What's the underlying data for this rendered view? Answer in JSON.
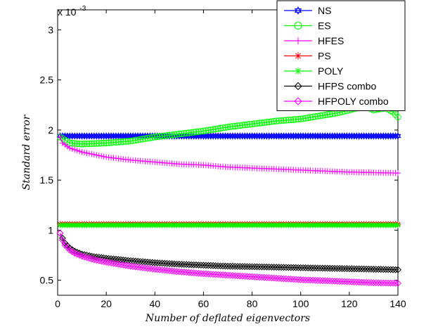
{
  "chart_data": {
    "type": "line",
    "title": "",
    "xlabel": "Number of deflated eigenvectors",
    "ylabel": "Standard error",
    "y_scale_label_base": "x 10",
    "y_scale_label_exp": "-3",
    "xlim": [
      0,
      140
    ],
    "ylim": [
      0.35,
      3.2
    ],
    "xticks": [
      0,
      20,
      40,
      60,
      80,
      100,
      120,
      140
    ],
    "xtick_labels": [
      "0",
      "20",
      "40",
      "60",
      "80",
      "100",
      "120",
      "140"
    ],
    "yticks": [
      0.5,
      1,
      1.5,
      2,
      2.5,
      3
    ],
    "ytick_labels": [
      "0.5",
      "1",
      "1.5",
      "2",
      "2.5",
      "3"
    ],
    "grid": false,
    "legend_position": "top-right",
    "series": [
      {
        "name": "NS",
        "color": "#0000ff",
        "marker": "hexagram",
        "x": [
          1,
          140
        ],
        "y": [
          1.94,
          1.94
        ]
      },
      {
        "name": "ES",
        "color": "#00ff00",
        "marker": "circle",
        "x": [
          1,
          5,
          10,
          20,
          30,
          40,
          50,
          60,
          70,
          80,
          90,
          100,
          110,
          115,
          120,
          125,
          128,
          130,
          135,
          138,
          140
        ],
        "y": [
          1.93,
          1.87,
          1.86,
          1.87,
          1.89,
          1.93,
          1.96,
          1.99,
          2.03,
          2.06,
          2.09,
          2.11,
          2.15,
          2.17,
          2.2,
          2.23,
          2.22,
          2.2,
          2.22,
          2.18,
          2.13
        ]
      },
      {
        "name": "HFES",
        "color": "#ff00ff",
        "marker": "plus",
        "x": [
          1,
          2,
          5,
          10,
          20,
          30,
          40,
          50,
          60,
          70,
          80,
          90,
          100,
          110,
          120,
          130,
          140
        ],
        "y": [
          1.93,
          1.87,
          1.82,
          1.78,
          1.73,
          1.7,
          1.68,
          1.66,
          1.65,
          1.63,
          1.62,
          1.61,
          1.6,
          1.59,
          1.58,
          1.575,
          1.57
        ]
      },
      {
        "name": "PS",
        "color": "#ff0000",
        "marker": "asterisk",
        "x": [
          1,
          140
        ],
        "y": [
          1.06,
          1.06
        ]
      },
      {
        "name": "POLY",
        "color": "#00ff00",
        "marker": "asterisk",
        "x": [
          1,
          140
        ],
        "y": [
          1.05,
          1.05
        ]
      },
      {
        "name": "HFPS combo",
        "color": "#000000",
        "marker": "diamond",
        "x": [
          1,
          2,
          3,
          5,
          7,
          10,
          15,
          20,
          30,
          40,
          50,
          60,
          70,
          80,
          90,
          100,
          110,
          120,
          130,
          140
        ],
        "y": [
          0.97,
          0.92,
          0.87,
          0.82,
          0.79,
          0.76,
          0.735,
          0.72,
          0.695,
          0.675,
          0.66,
          0.65,
          0.64,
          0.635,
          0.63,
          0.625,
          0.62,
          0.615,
          0.61,
          0.605
        ]
      },
      {
        "name": "HFPOLY combo",
        "color": "#ff00ff",
        "marker": "diamond",
        "x": [
          1,
          2,
          3,
          5,
          7,
          10,
          15,
          20,
          30,
          40,
          50,
          60,
          70,
          80,
          90,
          100,
          110,
          120,
          130,
          140
        ],
        "y": [
          0.97,
          0.9,
          0.85,
          0.8,
          0.77,
          0.74,
          0.705,
          0.68,
          0.64,
          0.61,
          0.585,
          0.565,
          0.55,
          0.535,
          0.52,
          0.505,
          0.495,
          0.485,
          0.475,
          0.47
        ]
      }
    ]
  }
}
